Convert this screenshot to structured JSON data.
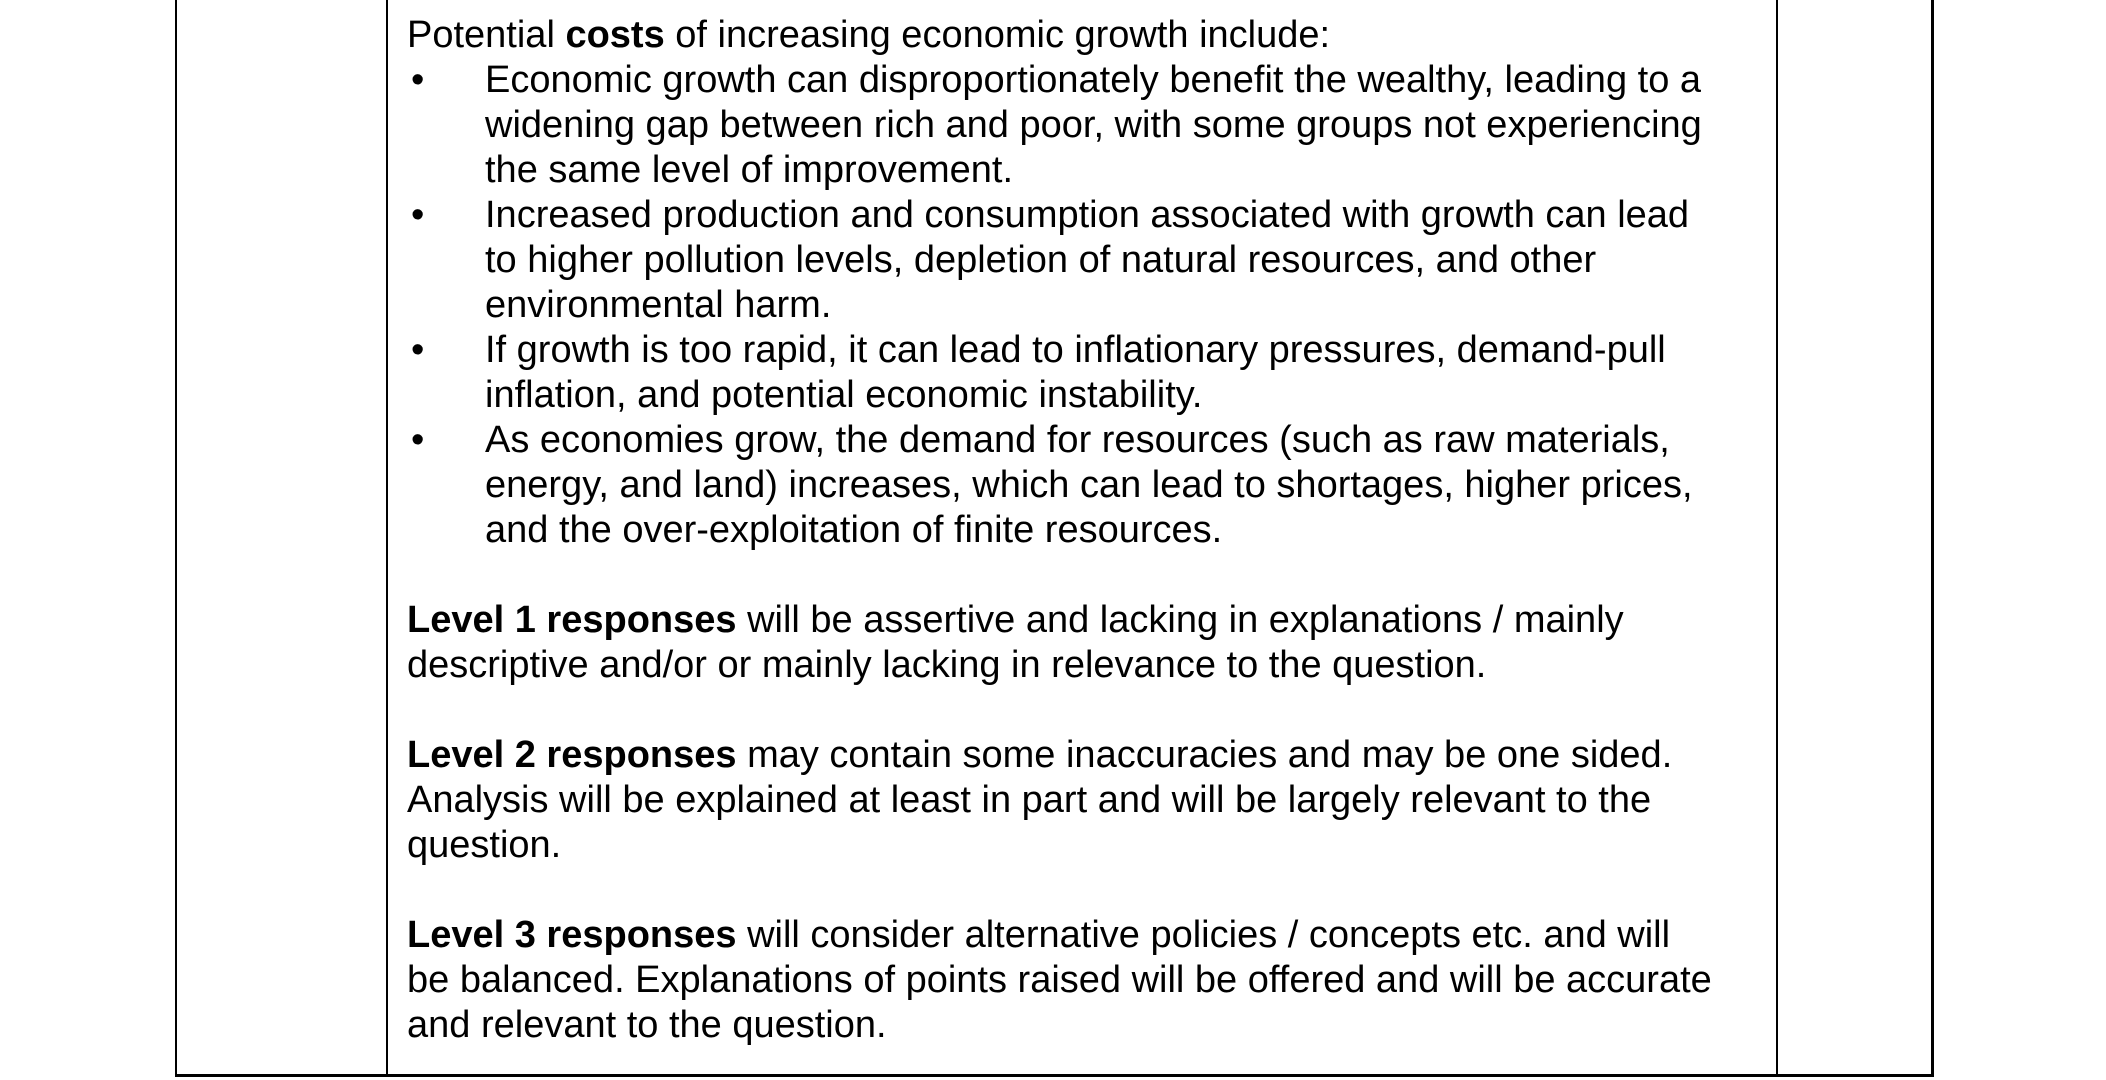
{
  "colors": {
    "background": "#ffffff",
    "text": "#000000",
    "table_border": "#000000"
  },
  "content": {
    "bullet_glyph": "•",
    "intro": {
      "pre": "Potential ",
      "bold": "costs",
      "post": " of increasing economic growth include:"
    },
    "bullets": [
      {
        "lines": [
          "Economic growth can disproportionately benefit the wealthy, leading to a",
          "widening gap between rich and poor, with some groups not experiencing",
          "the same level of improvement."
        ]
      },
      {
        "lines": [
          "Increased production and consumption associated with growth can lead",
          "to higher pollution levels, depletion of natural resources, and other",
          "environmental harm."
        ]
      },
      {
        "lines": [
          "If growth is too rapid, it can lead to inflationary pressures, demand-pull",
          "inflation, and potential economic instability."
        ]
      },
      {
        "lines": [
          "As economies grow, the demand for resources (such as raw materials,",
          "energy, and land) increases, which can lead to shortages, higher prices,",
          "and the over-exploitation of finite resources."
        ]
      }
    ],
    "levels": [
      {
        "bold": "Level 1 responses",
        "lines": [
          " will be assertive and lacking in explanations / mainly",
          "descriptive and/or or mainly lacking in relevance to the question."
        ]
      },
      {
        "bold": "Level 2 responses",
        "lines": [
          " may contain some inaccuracies and may be one sided.",
          "Analysis will be explained at least in part and will be largely relevant to the",
          "question."
        ]
      },
      {
        "bold": "Level 3 responses",
        "lines": [
          " will consider alternative policies / concepts etc. and will",
          "be balanced. Explanations of points raised will be offered and will be accurate",
          "and relevant to the question."
        ]
      }
    ]
  }
}
